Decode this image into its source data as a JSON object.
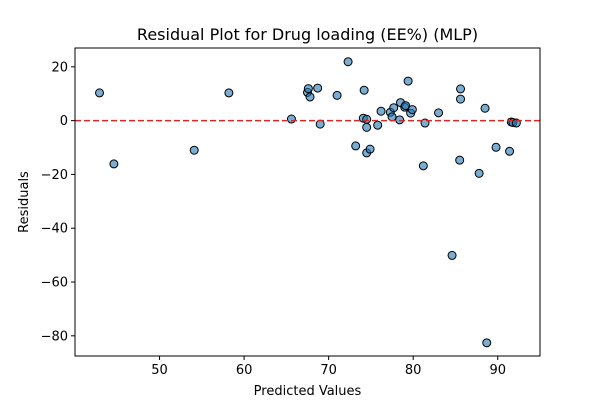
{
  "chart_data": {
    "type": "scatter",
    "title": "Residual Plot for Drug loading (EE%) (MLP)",
    "xlabel": "Predicted Values",
    "ylabel": "Residuals",
    "xlim": [
      40.0,
      95.0
    ],
    "ylim": [
      -87.5,
      27.0
    ],
    "x_ticks": [
      50,
      60,
      70,
      80,
      90
    ],
    "y_ticks": [
      20,
      0,
      -20,
      -40,
      -60,
      -80
    ],
    "x_tick_labels": [
      "50",
      "60",
      "70",
      "80",
      "90"
    ],
    "y_tick_labels": [
      "20",
      "0",
      "−20",
      "−40",
      "−60",
      "−80"
    ],
    "grid": false,
    "reference_line": {
      "y": 0,
      "style": "dashed",
      "color": "#d62728"
    },
    "point_color": "#1f77b4",
    "point_edge_color": "#000000",
    "points": [
      {
        "x": 42.9,
        "y": 10.3
      },
      {
        "x": 44.6,
        "y": -16.1
      },
      {
        "x": 54.1,
        "y": -11.0
      },
      {
        "x": 58.2,
        "y": 10.3
      },
      {
        "x": 65.6,
        "y": 0.6
      },
      {
        "x": 67.5,
        "y": 10.5
      },
      {
        "x": 67.6,
        "y": 11.9
      },
      {
        "x": 67.8,
        "y": 8.8
      },
      {
        "x": 68.7,
        "y": 12.1
      },
      {
        "x": 69.0,
        "y": -1.3
      },
      {
        "x": 71.0,
        "y": 9.4
      },
      {
        "x": 72.3,
        "y": 21.9
      },
      {
        "x": 73.2,
        "y": -9.4
      },
      {
        "x": 74.1,
        "y": 0.9
      },
      {
        "x": 74.2,
        "y": 11.3
      },
      {
        "x": 74.5,
        "y": 0.5
      },
      {
        "x": 74.5,
        "y": -2.5
      },
      {
        "x": 74.5,
        "y": -12.0
      },
      {
        "x": 74.9,
        "y": -10.6
      },
      {
        "x": 75.8,
        "y": -1.7
      },
      {
        "x": 76.2,
        "y": 3.5
      },
      {
        "x": 77.3,
        "y": 3.1
      },
      {
        "x": 77.5,
        "y": 1.4
      },
      {
        "x": 77.7,
        "y": 4.8
      },
      {
        "x": 78.4,
        "y": 0.3
      },
      {
        "x": 78.5,
        "y": 6.7
      },
      {
        "x": 79.0,
        "y": 5.0
      },
      {
        "x": 79.1,
        "y": 5.6
      },
      {
        "x": 79.4,
        "y": 14.7
      },
      {
        "x": 79.7,
        "y": 2.8
      },
      {
        "x": 79.9,
        "y": 4.1
      },
      {
        "x": 81.2,
        "y": -16.8
      },
      {
        "x": 81.4,
        "y": -0.9
      },
      {
        "x": 83.0,
        "y": 2.9
      },
      {
        "x": 84.6,
        "y": -50.1
      },
      {
        "x": 85.5,
        "y": -14.7
      },
      {
        "x": 85.6,
        "y": 11.8
      },
      {
        "x": 85.6,
        "y": 8.0
      },
      {
        "x": 87.8,
        "y": -19.6
      },
      {
        "x": 88.5,
        "y": 4.6
      },
      {
        "x": 88.7,
        "y": -82.6
      },
      {
        "x": 89.8,
        "y": -9.9
      },
      {
        "x": 91.4,
        "y": -11.4
      },
      {
        "x": 91.6,
        "y": -0.5
      },
      {
        "x": 91.8,
        "y": -0.7
      },
      {
        "x": 92.2,
        "y": -0.9
      }
    ]
  }
}
